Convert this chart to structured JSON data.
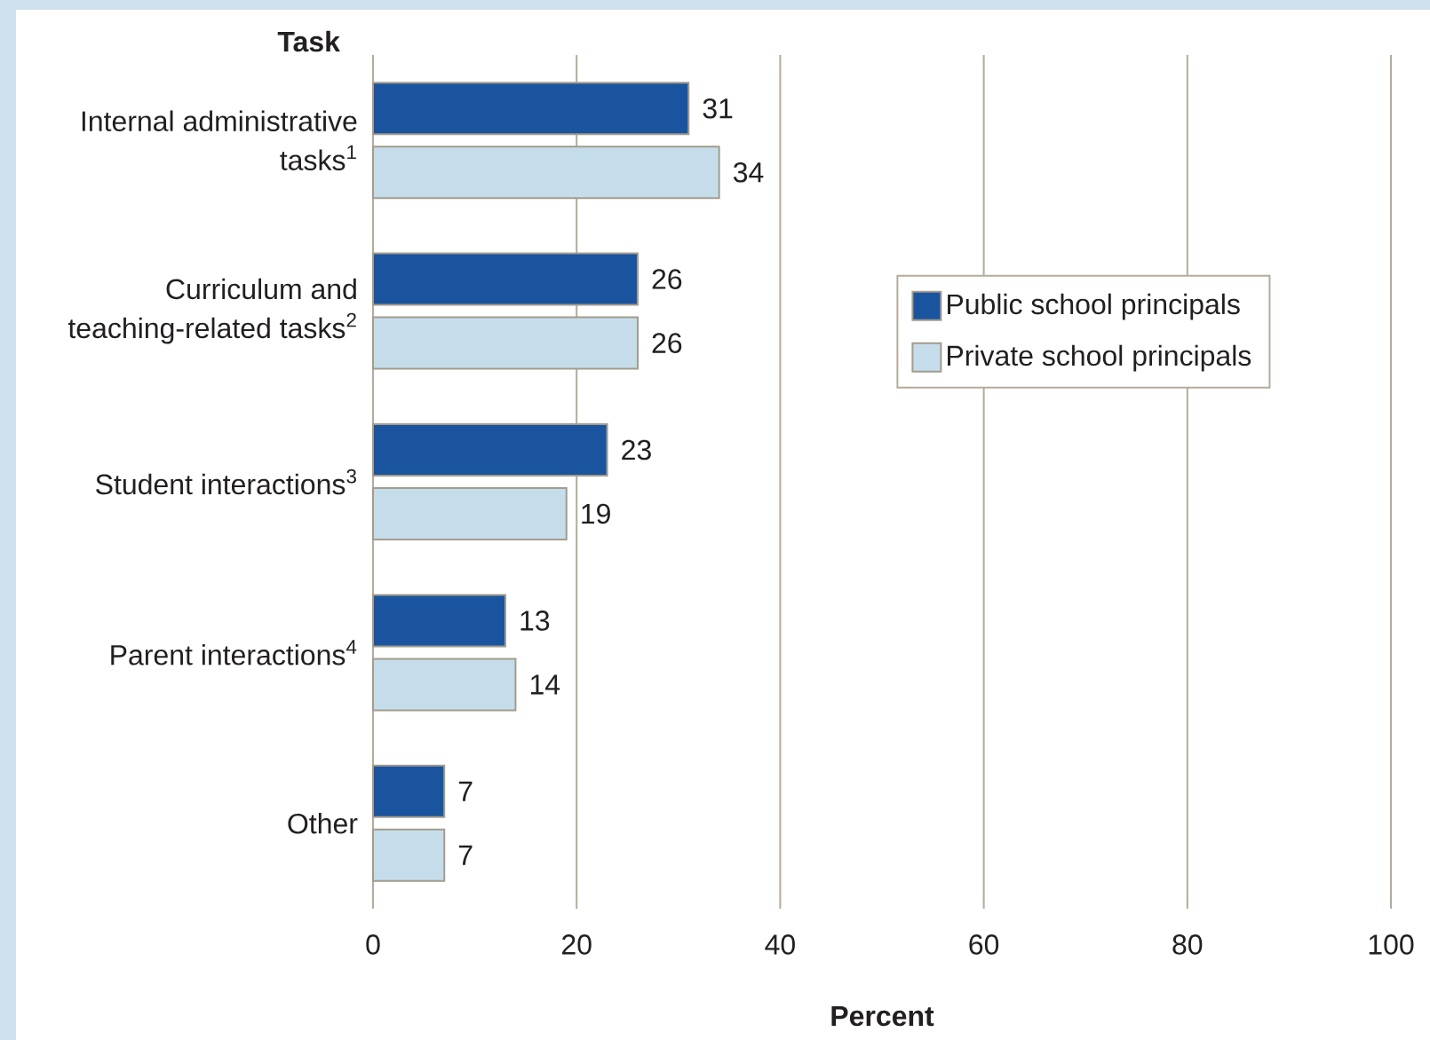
{
  "chart_data": {
    "type": "bar",
    "orientation": "horizontal",
    "ylabel": "Task",
    "xlabel": "Percent",
    "categories": [
      "Internal administrative tasks$^{1}$",
      "Curriculum and teaching-related tasks$^{2}$",
      "Student interactions$^{3}$",
      "Parent interactions$^{4}$",
      "Other"
    ],
    "series": [
      {
        "name": "Public school principals",
        "color": "#1b549e",
        "values": [
          31,
          26,
          23,
          13,
          7
        ]
      },
      {
        "name": "Private school principals",
        "color": "#c5ddeb",
        "values": [
          34,
          26,
          19,
          14,
          7
        ]
      }
    ],
    "xlim": [
      0,
      100
    ],
    "xticks": [
      0,
      20,
      40,
      60,
      80,
      100
    ],
    "grid": "x",
    "legend": "right",
    "data_labels": true
  }
}
